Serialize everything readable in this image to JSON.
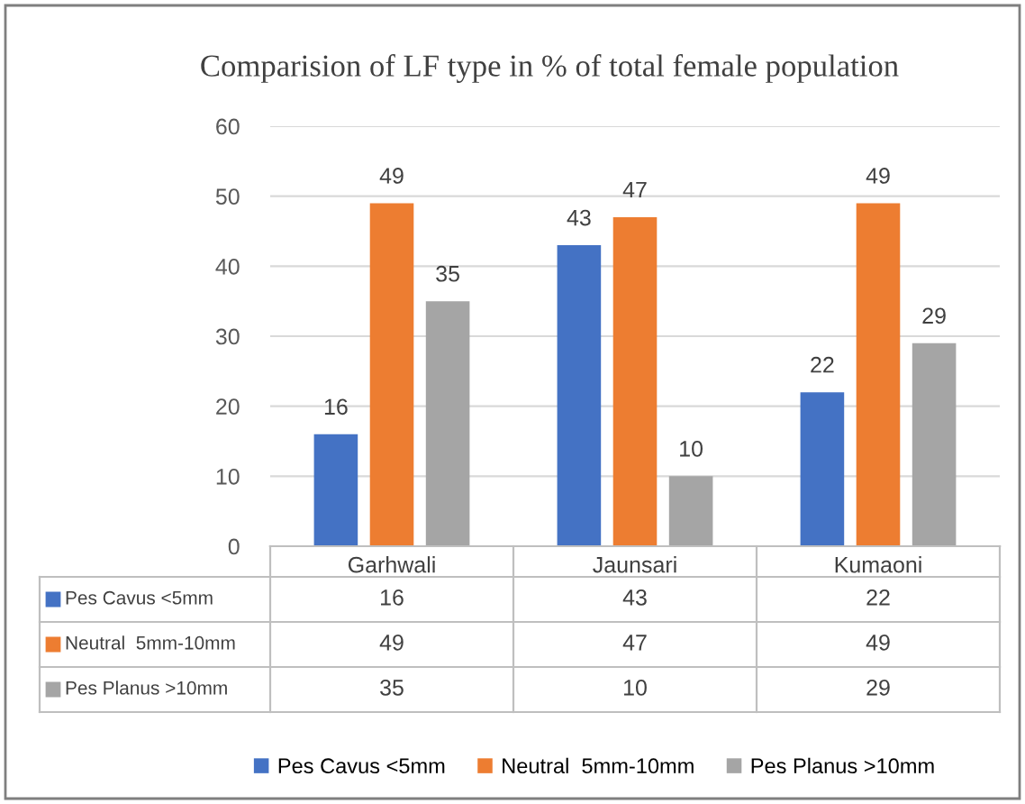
{
  "chart_data": {
    "type": "bar",
    "title": "Comparision of LF type in % of total female population",
    "categories": [
      "Garhwali",
      "Jaunsari",
      "Kumaoni"
    ],
    "series": [
      {
        "name": "Pes Cavus <5mm",
        "color": "#4472c4",
        "values": [
          16,
          43,
          22
        ],
        "value_labels": [
          "16",
          "43",
          "22"
        ]
      },
      {
        "name": "Neutral  5mm-10mm",
        "color": "#ed7d31",
        "values": [
          49,
          47,
          49
        ],
        "value_labels": [
          "49",
          "47",
          "49"
        ]
      },
      {
        "name": "Pes Planus >10mm",
        "color": "#a5a5a5",
        "values": [
          35,
          10,
          29
        ],
        "value_labels": [
          "35",
          "10",
          "29"
        ]
      }
    ],
    "annotations": [
      "16",
      "43",
      "22",
      "49",
      "47",
      "49",
      "35",
      "10",
      "29"
    ],
    "ylim": [
      0,
      60
    ],
    "yticks": [
      0,
      10,
      20,
      30,
      40,
      50,
      60
    ],
    "grid": "y",
    "legend": "bottom",
    "data_labels": true
  }
}
